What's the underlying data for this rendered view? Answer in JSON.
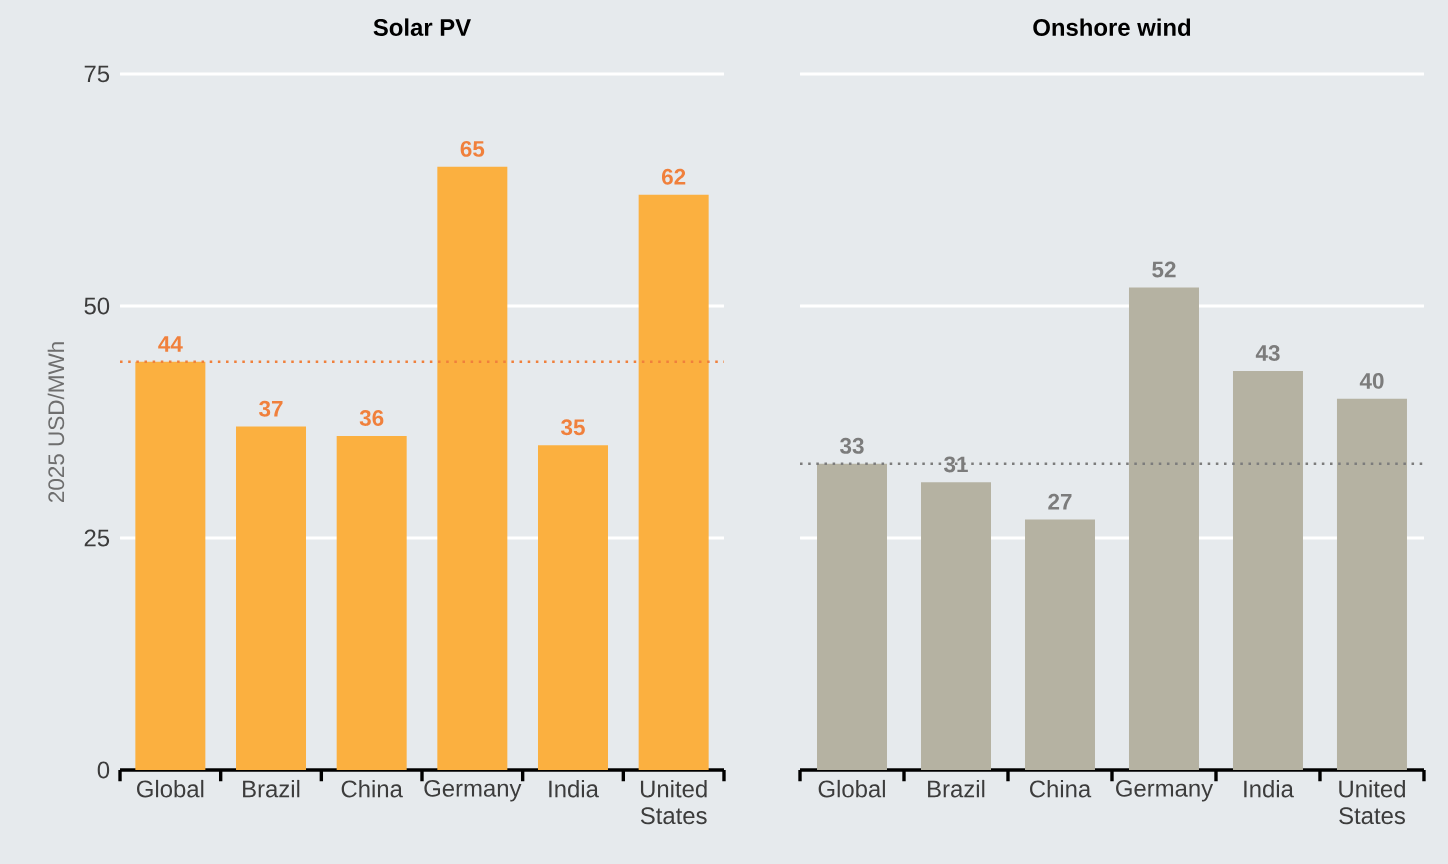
{
  "chart_data": [
    {
      "type": "bar",
      "title": "Solar PV",
      "ylabel": "2025 USD/MWh",
      "categories": [
        "Global",
        "Brazil",
        "China",
        "Germany",
        "India",
        "United States"
      ],
      "values": [
        44,
        37,
        36,
        65,
        35,
        62
      ],
      "color": "#fbb040",
      "ylim": [
        0,
        75
      ],
      "yticks": [
        0,
        25,
        50,
        75
      ],
      "grid": "y",
      "data_labels": true,
      "ref_lines": [
        {
          "axis": "y",
          "value": 44,
          "color": "#f0803c",
          "line_style": "dotted"
        }
      ]
    },
    {
      "type": "bar",
      "title": "Onshore wind",
      "categories": [
        "Global",
        "Brazil",
        "China",
        "Germany",
        "India",
        "United States"
      ],
      "values": [
        33,
        31,
        27,
        52,
        43,
        40
      ],
      "color": "#b5b2a2",
      "ylim": [
        0,
        75
      ],
      "yticks": [
        0,
        25,
        50,
        75
      ],
      "grid": "y",
      "data_labels": true,
      "tick_labels": "x",
      "ref_lines": [
        {
          "axis": "y",
          "value": 33,
          "color": "#7c7c7c",
          "line_style": "dotted"
        }
      ]
    }
  ]
}
